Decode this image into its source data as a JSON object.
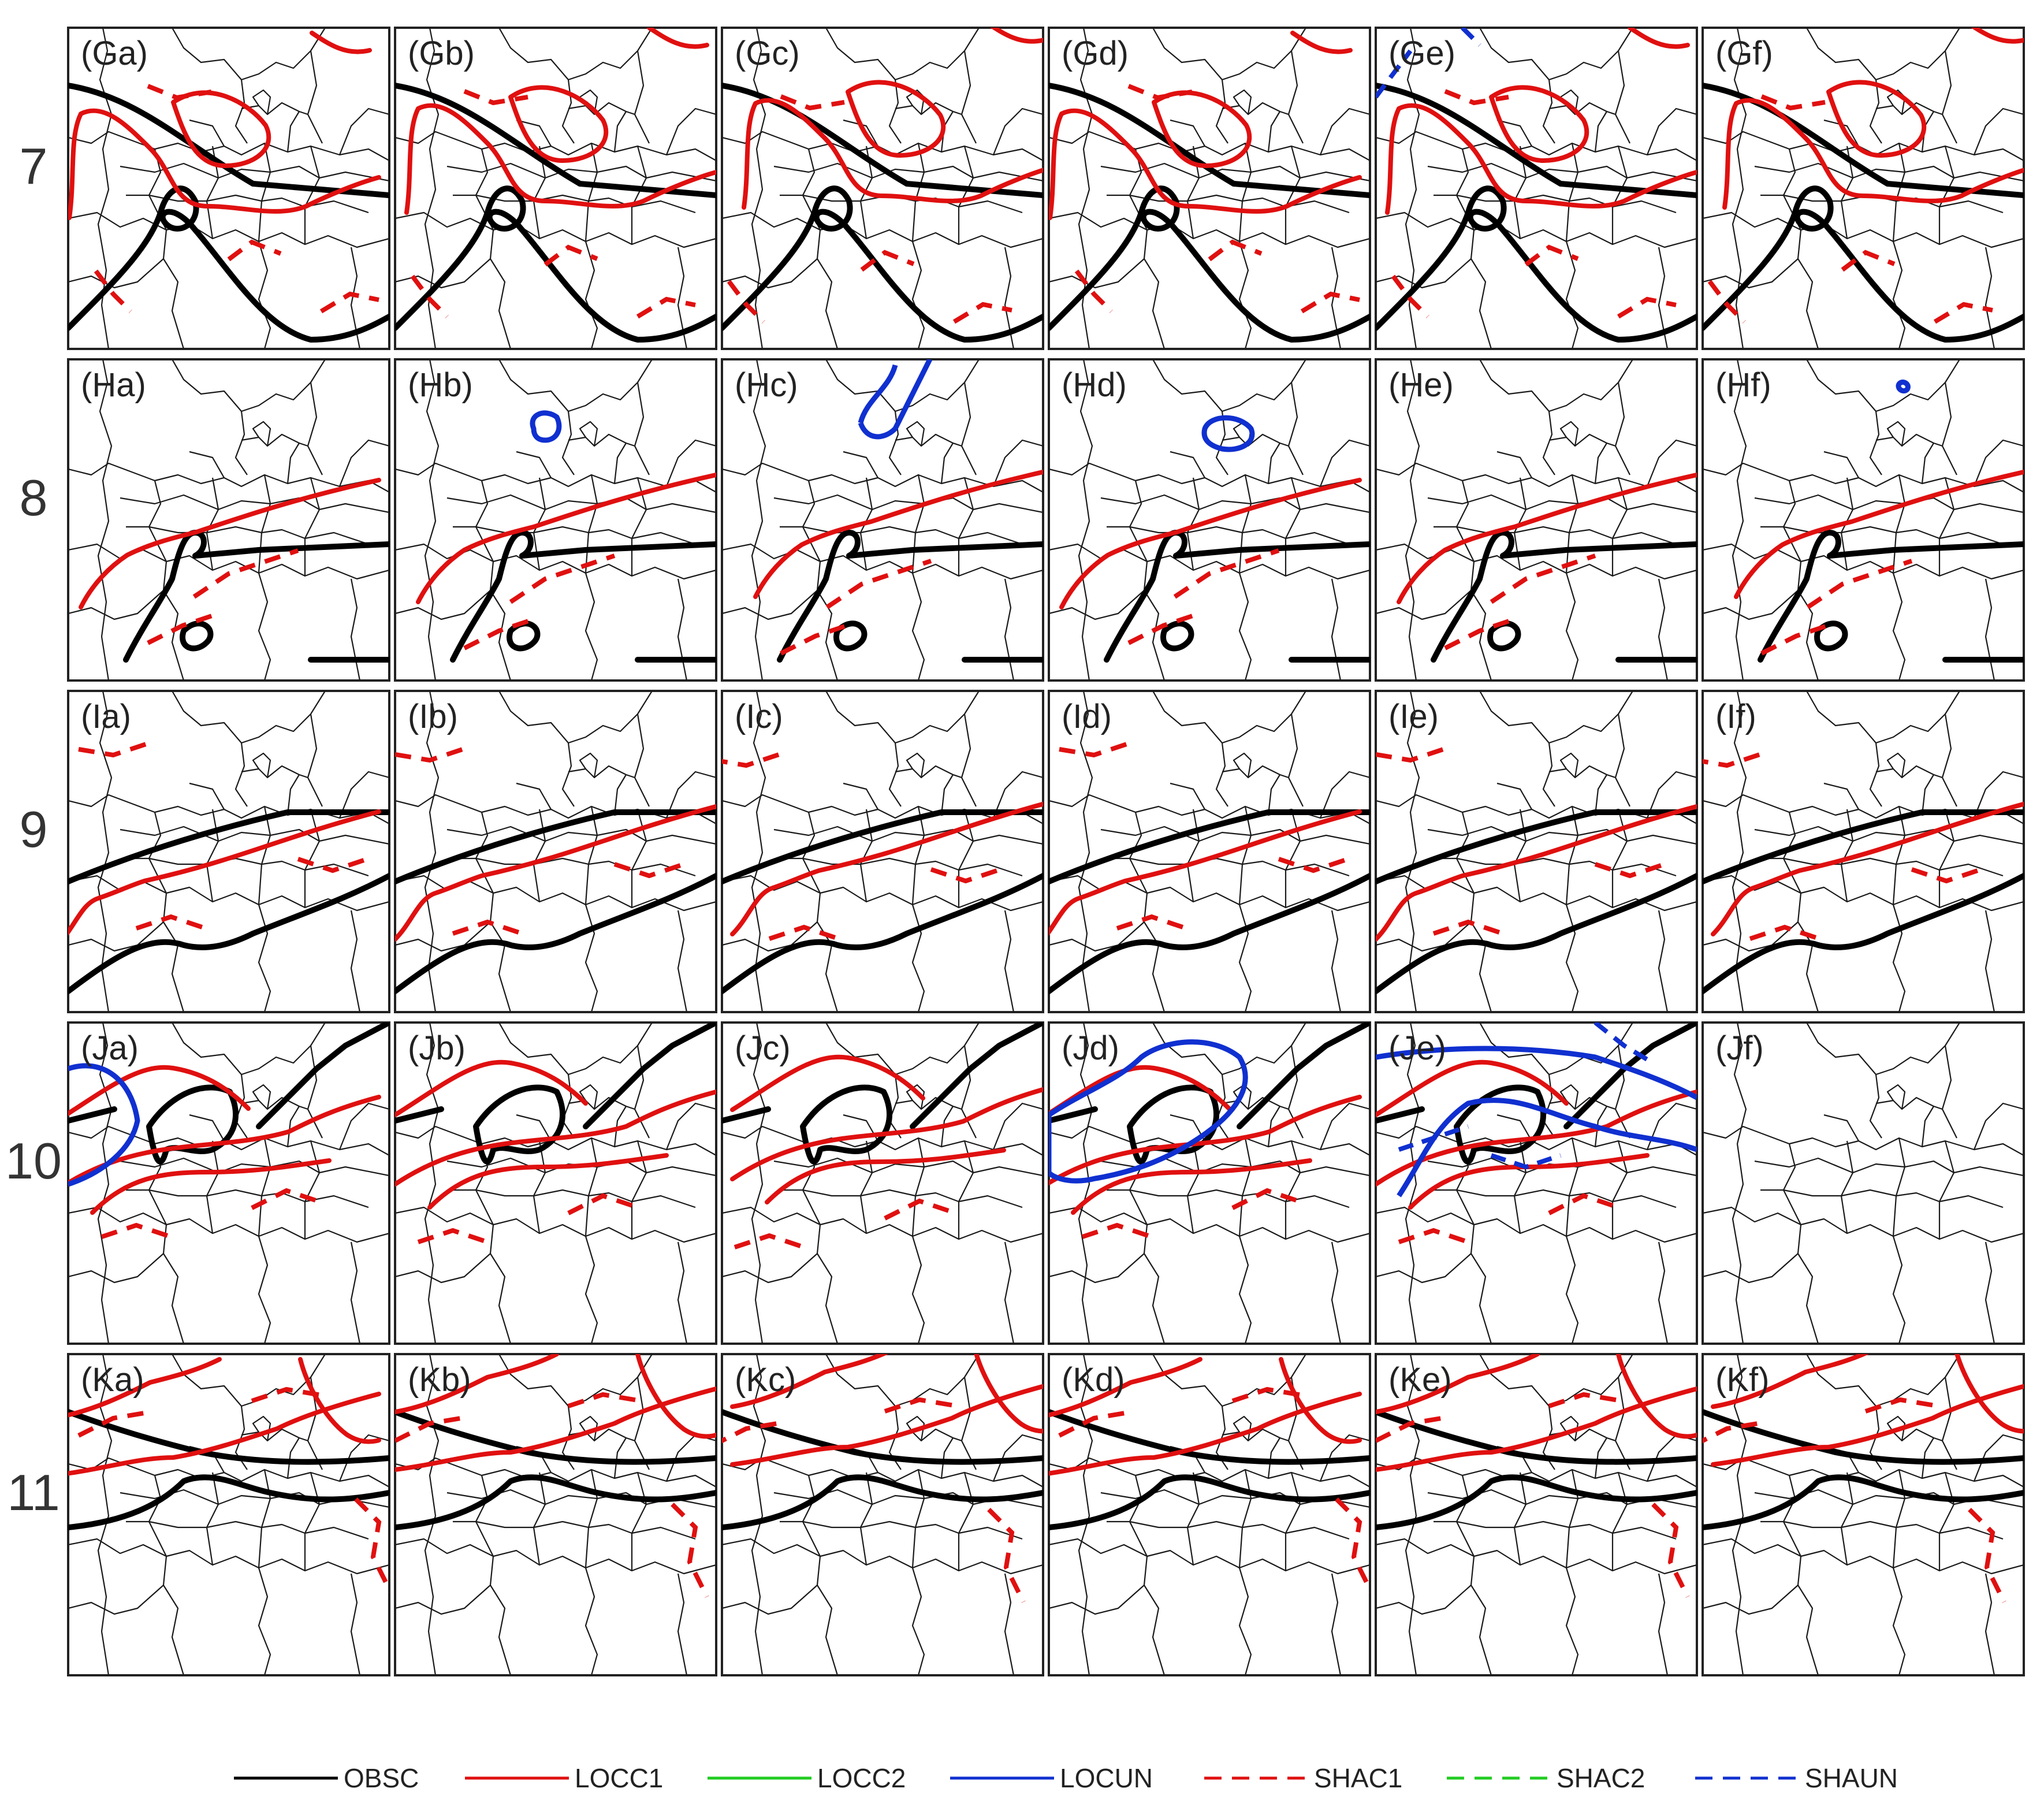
{
  "rows": [
    {
      "label": "7",
      "panels": [
        "(Ga)",
        "(Gb)",
        "(Gc)",
        "(Gd)",
        "(Ge)",
        "(Gf)"
      ]
    },
    {
      "label": "8",
      "panels": [
        "(Ha)",
        "(Hb)",
        "(Hc)",
        "(Hd)",
        "(He)",
        "(Hf)"
      ]
    },
    {
      "label": "9",
      "panels": [
        "(Ia)",
        "(Ib)",
        "(Ic)",
        "(Id)",
        "(Ie)",
        "(If)"
      ]
    },
    {
      "label": "10",
      "panels": [
        "(Ja)",
        "(Jb)",
        "(Jc)",
        "(Jd)",
        "(Je)",
        "(Jf)"
      ]
    },
    {
      "label": "11",
      "panels": [
        "(Ka)",
        "(Kb)",
        "(Kc)",
        "(Kd)",
        "(Ke)",
        "(Kf)"
      ]
    }
  ],
  "legend": [
    {
      "label": "OBSC",
      "color": "#000000",
      "style": "solid"
    },
    {
      "label": "LOCC1",
      "color": "#e01010",
      "style": "solid"
    },
    {
      "label": "LOCC2",
      "color": "#22cc22",
      "style": "solid"
    },
    {
      "label": "LOCUN",
      "color": "#1030d0",
      "style": "solid"
    },
    {
      "label": "SHAC1",
      "color": "#e01010",
      "style": "dashed"
    },
    {
      "label": "SHAC2",
      "color": "#22cc22",
      "style": "dashed"
    },
    {
      "label": "SHAUN",
      "color": "#1030d0",
      "style": "dashed"
    }
  ]
}
